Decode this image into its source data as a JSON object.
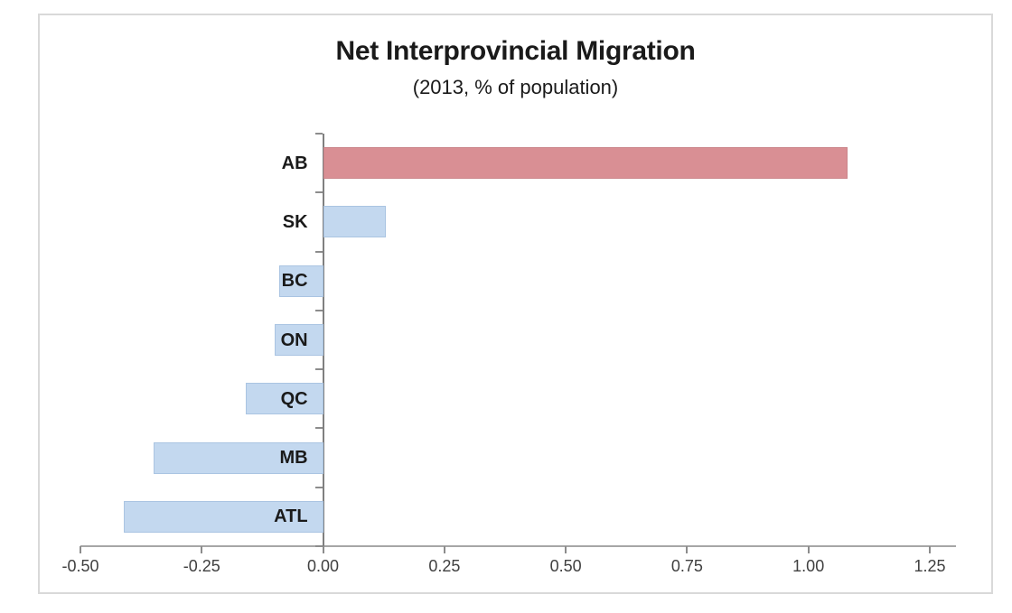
{
  "page": {
    "background_color": "#ffffff",
    "frame_border_color": "#d9d9d9"
  },
  "chart": {
    "title": "Net Interprovincial Migration",
    "subtitle": "(2013, % of population)"
  },
  "chart_data": {
    "type": "bar",
    "orientation": "horizontal",
    "title": "Net Interprovincial Migration",
    "subtitle": "(2013, % of population)",
    "categories": [
      "AB",
      "SK",
      "BC",
      "ON",
      "QC",
      "MB",
      "ATL"
    ],
    "values": [
      1.08,
      0.13,
      -0.09,
      -0.1,
      -0.16,
      -0.35,
      -0.41
    ],
    "bar_fill_colors": [
      "#d98f94",
      "#c3d8ef",
      "#c3d8ef",
      "#c3d8ef",
      "#c3d8ef",
      "#c3d8ef",
      "#c3d8ef"
    ],
    "bar_border_colors": [
      "#cb858a",
      "#aac4e2",
      "#aac4e2",
      "#aac4e2",
      "#aac4e2",
      "#aac4e2",
      "#aac4e2"
    ],
    "positive_color": "#d98f94",
    "negative_color": "#c3d8ef",
    "xlabel": "",
    "ylabel": "",
    "xlim": [
      -0.5,
      1.25
    ],
    "x_ticks": [
      {
        "value": -0.5,
        "label": "-0.50"
      },
      {
        "value": -0.25,
        "label": "-0.25"
      },
      {
        "value": 0.0,
        "label": "0.00"
      },
      {
        "value": 0.25,
        "label": "0.25"
      },
      {
        "value": 0.5,
        "label": "0.50"
      },
      {
        "value": 0.75,
        "label": "0.75"
      },
      {
        "value": 1.0,
        "label": "1.00"
      },
      {
        "value": 1.25,
        "label": "1.25"
      }
    ],
    "grid": false,
    "legend": false,
    "axis_line_color": "#a6a6a6",
    "tick_mark_color": "#8c8c8c",
    "zero_line_color": "#808080",
    "tick_label_color": "#404040",
    "category_label_color": "#1a1a1a"
  }
}
